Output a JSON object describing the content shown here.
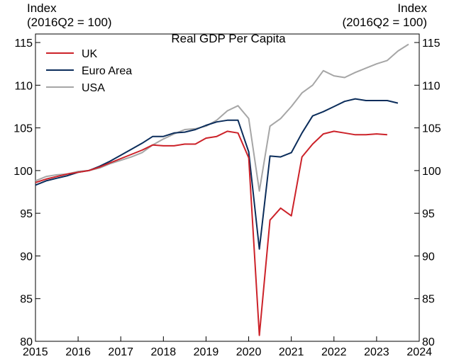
{
  "chart_data": {
    "type": "line",
    "title": "Real GDP Per Capita",
    "ylabel_left": [
      "Index",
      "(2016Q2 = 100)"
    ],
    "ylabel_right": [
      "Index",
      "(2016Q2 = 100)"
    ],
    "xlim": [
      2015,
      2024
    ],
    "ylim": [
      80,
      116
    ],
    "x_ticks": [
      2015,
      2016,
      2017,
      2018,
      2019,
      2020,
      2021,
      2022,
      2023,
      2024
    ],
    "x_tick_labels": [
      "2015",
      "2016",
      "2017",
      "2018",
      "2019",
      "2020",
      "2021",
      "2022",
      "2023",
      "2024"
    ],
    "y_ticks": [
      80,
      85,
      90,
      95,
      100,
      105,
      110,
      115
    ],
    "y_tick_labels": [
      "80",
      "85",
      "90",
      "95",
      "100",
      "105",
      "110",
      "115"
    ],
    "legend_position": "top-left",
    "x": [
      2015.0,
      2015.25,
      2015.5,
      2015.75,
      2016.0,
      2016.25,
      2016.5,
      2016.75,
      2017.0,
      2017.25,
      2017.5,
      2017.75,
      2018.0,
      2018.25,
      2018.5,
      2018.75,
      2019.0,
      2019.25,
      2019.5,
      2019.75,
      2020.0,
      2020.25,
      2020.5,
      2020.75,
      2021.0,
      2021.25,
      2021.5,
      2021.75,
      2022.0,
      2022.25,
      2022.5,
      2022.75,
      2023.0,
      2023.25,
      2023.5,
      2023.75
    ],
    "series": [
      {
        "name": "UK",
        "color": "#cc2229",
        "values": [
          98.6,
          99.0,
          99.3,
          99.6,
          99.8,
          100.0,
          100.4,
          100.9,
          101.4,
          101.9,
          102.4,
          103.0,
          102.9,
          102.9,
          103.1,
          103.1,
          103.8,
          104.0,
          104.6,
          104.4,
          101.5,
          80.7,
          94.2,
          95.6,
          94.7,
          101.6,
          103.1,
          104.3,
          104.6,
          104.4,
          104.2,
          104.2,
          104.3,
          104.2,
          null,
          null
        ]
      },
      {
        "name": "Euro Area",
        "color": "#0b2d5b",
        "values": [
          98.3,
          98.8,
          99.1,
          99.4,
          99.8,
          100.0,
          100.5,
          101.1,
          101.8,
          102.5,
          103.2,
          104.0,
          104.0,
          104.4,
          104.5,
          104.8,
          105.3,
          105.7,
          105.9,
          105.9,
          102.2,
          90.8,
          101.7,
          101.6,
          102.1,
          104.4,
          106.4,
          106.9,
          107.5,
          108.1,
          108.4,
          108.2,
          108.2,
          108.2,
          107.9,
          null
        ]
      },
      {
        "name": "USA",
        "color": "#a6a6a6",
        "values": [
          98.8,
          99.3,
          99.5,
          99.6,
          99.9,
          100.0,
          100.3,
          100.8,
          101.2,
          101.6,
          102.1,
          103.0,
          103.7,
          104.3,
          104.8,
          104.9,
          105.2,
          105.9,
          107.0,
          107.6,
          106.1,
          97.6,
          105.2,
          106.1,
          107.5,
          109.1,
          110.0,
          111.7,
          111.1,
          110.9,
          111.5,
          112.0,
          112.5,
          112.9,
          114.0,
          114.8
        ]
      }
    ]
  }
}
